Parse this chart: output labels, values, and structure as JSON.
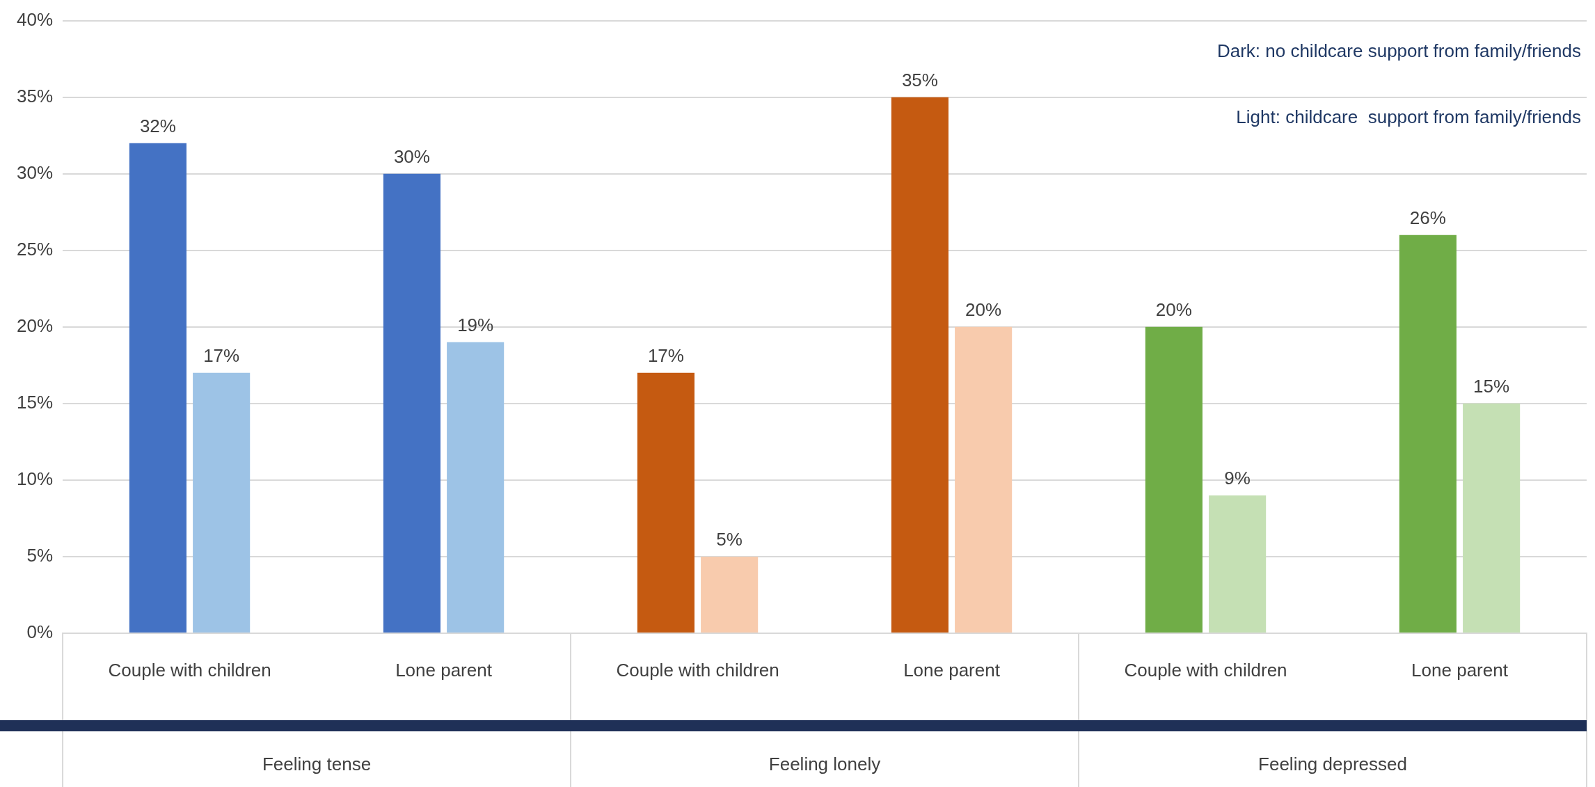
{
  "chart_data": {
    "type": "bar",
    "categories": [
      "Couple with children",
      "Lone parent",
      "Couple with children",
      "Lone parent",
      "Couple with children",
      "Lone parent"
    ],
    "series": [
      {
        "colors": [
          "#4472c4",
          "#4472c4",
          "#c55a11",
          "#c55a11",
          "#70ad47",
          "#70ad47"
        ],
        "values": [
          32,
          30,
          17,
          35,
          20,
          26
        ],
        "value_labels": [
          "32%",
          "30%",
          "17%",
          "35%",
          "20%",
          "26%"
        ]
      },
      {
        "colors": [
          "#9dc3e6",
          "#9dc3e6",
          "#f8cbad",
          "#f8cbad",
          "#c5e0b4",
          "#c5e0b4"
        ],
        "values": [
          17,
          19,
          5,
          20,
          9,
          15
        ],
        "value_labels": [
          "17%",
          "19%",
          "5%",
          "20%",
          "9%",
          "15%"
        ]
      }
    ],
    "ylim": [
      0,
      40
    ],
    "yticks": [
      {
        "value": 0,
        "label": "0%"
      },
      {
        "value": 5,
        "label": "5%"
      },
      {
        "value": 10,
        "label": "10%"
      },
      {
        "value": 15,
        "label": "15%"
      },
      {
        "value": 20,
        "label": "20%"
      },
      {
        "value": 25,
        "label": "25%"
      },
      {
        "value": 30,
        "label": "30%"
      },
      {
        "value": 35,
        "label": "35%"
      },
      {
        "value": 40,
        "label": "40%"
      }
    ],
    "grid": "y",
    "legend": false,
    "annotations": [
      "Dark: no childcare support from family/friends",
      "Light: childcare  support from family/friends",
      "Feeling tense",
      "Feeling lonely",
      "Feeling depressed"
    ]
  }
}
